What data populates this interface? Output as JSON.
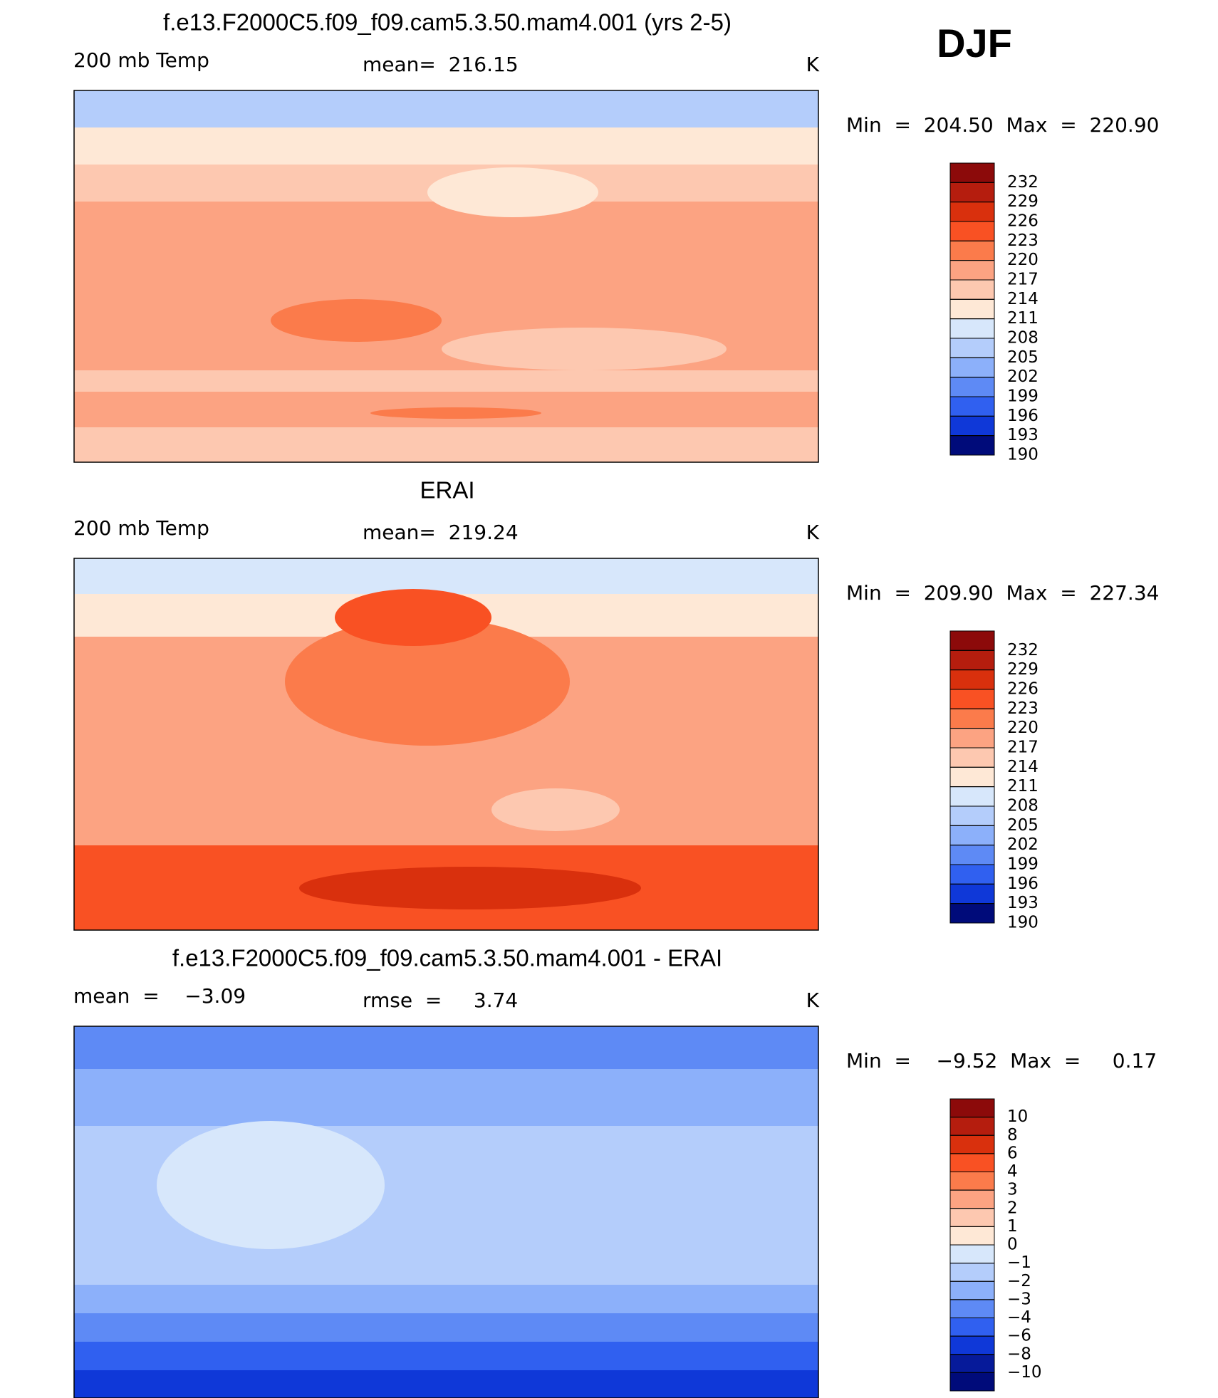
{
  "season": "DJF",
  "panels": [
    {
      "title": "f.e13.F2000C5.f09_f09.cam5.3.50.mam4.001 (yrs 2-5)",
      "left_label": "200 mb Temp",
      "center_label": "mean=  216.15",
      "units": "K",
      "min_max": "Min  =  204.50  Max  =  220.90",
      "colorbar": {
        "colors": [
          "#8c0a0a",
          "#b51d0e",
          "#d9300d",
          "#f95123",
          "#fb7b4b",
          "#fca382",
          "#fdc8b0",
          "#fee8d6",
          "#d7e7fb",
          "#b4cdfb",
          "#8cb0fa",
          "#5e8af5",
          "#3060f0",
          "#0f38d8",
          "#000b7a"
        ],
        "levels": [
          232,
          229,
          226,
          223,
          220,
          217,
          214,
          211,
          208,
          205,
          202,
          199,
          196,
          193,
          190
        ]
      }
    },
    {
      "title": "ERAI",
      "left_label": "200 mb Temp",
      "center_label": "mean=  219.24",
      "units": "K",
      "min_max": "Min  =  209.90  Max  =  227.34",
      "colorbar": {
        "colors": [
          "#8c0a0a",
          "#b51d0e",
          "#d9300d",
          "#f95123",
          "#fb7b4b",
          "#fca382",
          "#fdc8b0",
          "#fee8d6",
          "#d7e7fb",
          "#b4cdfb",
          "#8cb0fa",
          "#5e8af5",
          "#3060f0",
          "#0f38d8",
          "#000b7a"
        ],
        "levels": [
          232,
          229,
          226,
          223,
          220,
          217,
          214,
          211,
          208,
          205,
          202,
          199,
          196,
          193,
          190
        ]
      }
    },
    {
      "title": "f.e13.F2000C5.f09_f09.cam5.3.50.mam4.001 - ERAI",
      "left_label": "mean  =    −3.09",
      "center_label": "rmse  =     3.74",
      "units": "K",
      "min_max": "Min  =    −9.52  Max  =     0.17",
      "colorbar": {
        "colors": [
          "#8c0a0a",
          "#b51d0e",
          "#d9300d",
          "#f95123",
          "#fb7b4b",
          "#fca382",
          "#fdc8b0",
          "#fee8d6",
          "#d7e7fb",
          "#b4cdfb",
          "#8cb0fa",
          "#5e8af5",
          "#3060f0",
          "#0f38d8",
          "#061a9a",
          "#000b7a"
        ],
        "levels": [
          10,
          8,
          6,
          4,
          3,
          2,
          1,
          0,
          {
            "value": -1,
            "label": "−1"
          },
          {
            "value": -2,
            "label": "−2"
          },
          {
            "value": -3,
            "label": "−3"
          },
          {
            "value": -4,
            "label": "−4"
          },
          {
            "value": -6,
            "label": "−6"
          },
          {
            "value": -8,
            "label": "−8"
          },
          {
            "value": -10,
            "label": "−10"
          }
        ]
      }
    }
  ]
}
